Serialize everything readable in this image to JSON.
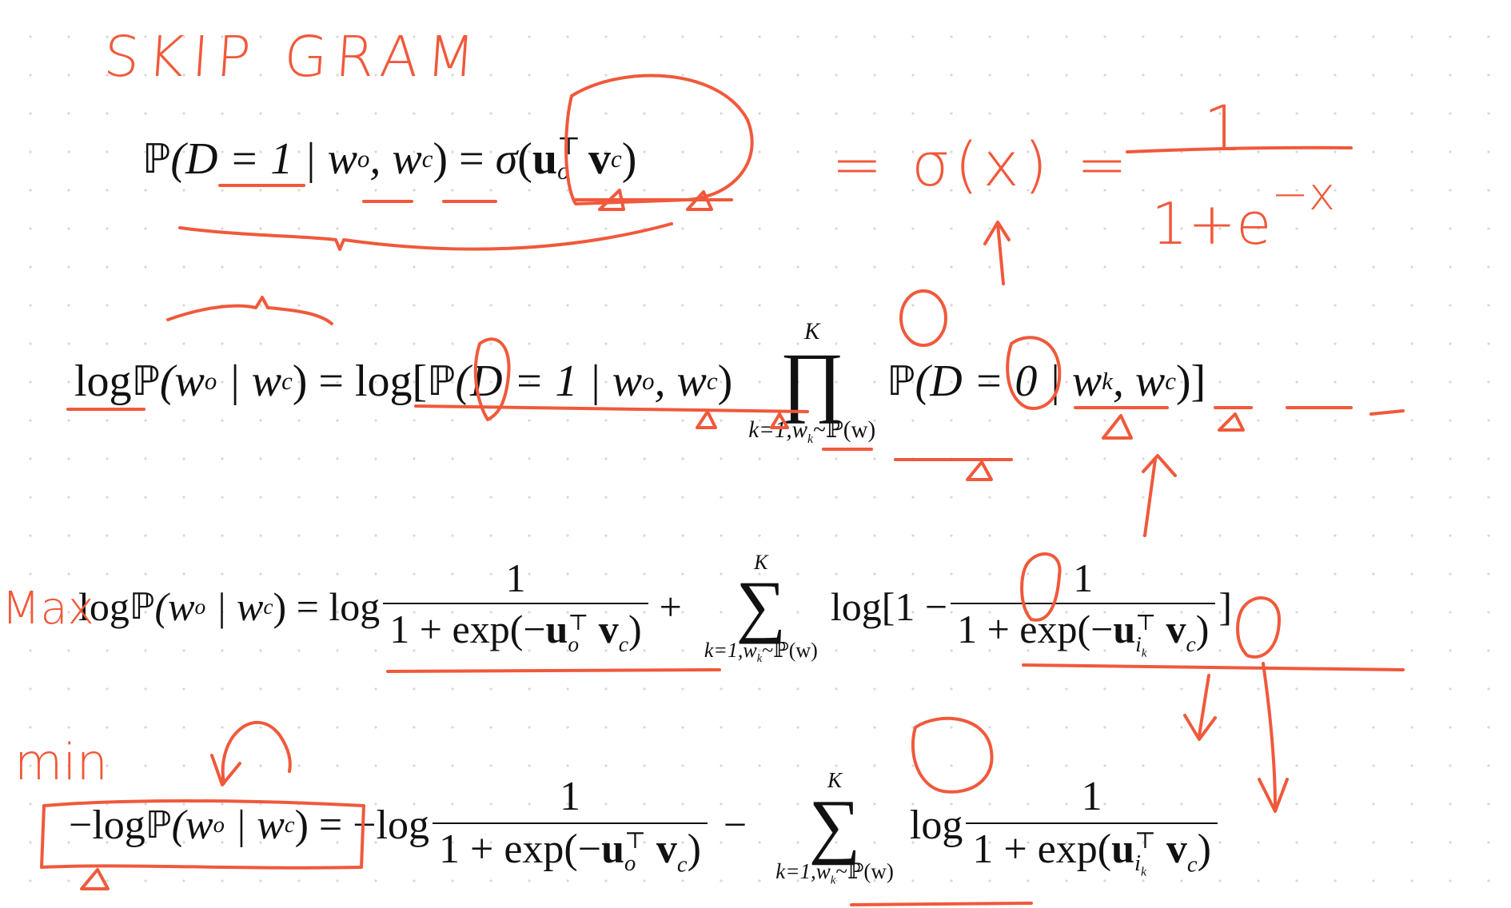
{
  "handwriting": {
    "title": "SKIP GRAM",
    "sigma_def": "= σ(x) =",
    "sigma_num": "1",
    "sigma_den": "1+e",
    "sigma_exp": "−x",
    "max_label": "Max",
    "min_label": "min"
  },
  "equations": {
    "eq1": {
      "lhs": "ℙ",
      "lhs_args": "(D = 1 | w",
      "sub_o": "o",
      "mid": ", w",
      "sub_c": "c",
      "close": ") = ",
      "sigma": "σ",
      "u": "u",
      "v": "v"
    },
    "eq2": {
      "log": "log",
      "prob": "ℙ",
      "lhs_args": "(w",
      "bar": " | w",
      "eq_log": ") = log[",
      "inner": "(D = 1 | w",
      "inner_mid": ", w",
      "inner_close": ")",
      "prod_sym": "∏",
      "upper": "K",
      "lower": "k=1,w",
      "lower_sub": "k",
      "lower_tail": "~ℙ(w)",
      "factor": "(D = 0 | w",
      "factor_sub": "k",
      "factor_mid": ", w",
      "factor_close": ")]"
    },
    "eq3": {
      "log": "log",
      "prob": "ℙ",
      "lhs_args": "(w",
      "bar": " | w",
      "eq_log": ") = log",
      "num1": "1",
      "den1_a": "1 + exp(−",
      "den1_close": ")",
      "plus": "+",
      "sum_sym": "∑",
      "upper": "K",
      "lower": "k=1,w",
      "lower_sub": "k",
      "lower_tail": "~ℙ(w)",
      "log2": "log[1 −",
      "num2": "1",
      "den2_a": "1 + exp(−",
      "den2_close": ")",
      "tail": "]"
    },
    "eq4": {
      "neg_log": "−log",
      "prob": "ℙ",
      "lhs_args": "(w",
      "bar": " | w",
      "eq_log": ") = −log",
      "num1": "1",
      "den1_a": "1 + exp(−",
      "den1_close": ")",
      "minus": "−",
      "sum_sym": "∑",
      "upper": "K",
      "lower": "k=1,w",
      "lower_sub": "k",
      "lower_tail": "~ℙ(w)",
      "log2": "log",
      "num2": "1",
      "den2_a": "1 + exp(",
      "den2_close": ")"
    },
    "sym": {
      "u": "u",
      "v": "v",
      "o": "o",
      "c": "c",
      "T": "⊤",
      "ik": "i",
      "k": "k"
    }
  },
  "colors": {
    "ink": "#f0593b",
    "text": "#111111"
  }
}
